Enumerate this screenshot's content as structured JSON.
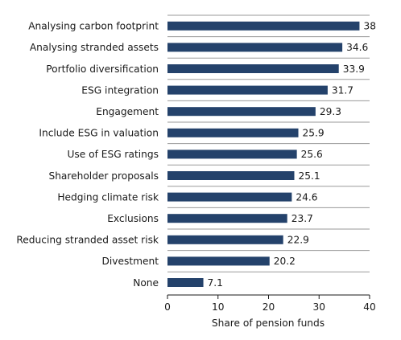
{
  "chart_data": {
    "type": "bar",
    "orientation": "horizontal",
    "categories": [
      "Analysing carbon footprint",
      "Analysing stranded assets",
      "Portfolio diversification",
      "ESG integration",
      "Engagement",
      "Include ESG in valuation",
      "Use of ESG ratings",
      "Shareholder proposals",
      "Hedging climate risk",
      "Exclusions",
      "Reducing stranded asset risk",
      "Divestment",
      "None"
    ],
    "values": [
      38,
      34.6,
      33.9,
      31.7,
      29.3,
      25.9,
      25.6,
      25.1,
      24.6,
      23.7,
      22.9,
      20.2,
      7.1
    ],
    "value_labels": [
      "38",
      "34.6",
      "33.9",
      "31.7",
      "29.3",
      "25.9",
      "25.6",
      "25.1",
      "24.6",
      "23.7",
      "22.9",
      "20.2",
      "7.1"
    ],
    "xlabel": "Share of pension funds",
    "ylabel": "",
    "xlim": [
      0,
      40
    ],
    "xticks": [
      0,
      10,
      20,
      30,
      40
    ],
    "xtick_labels": [
      "0",
      "10",
      "20",
      "30",
      "40"
    ],
    "grid": "horizontal separators between categories",
    "legend": "none",
    "colors": {
      "bar": "#24426b",
      "grid": "#9a9a9a",
      "axis": "#1a1a1a"
    }
  }
}
